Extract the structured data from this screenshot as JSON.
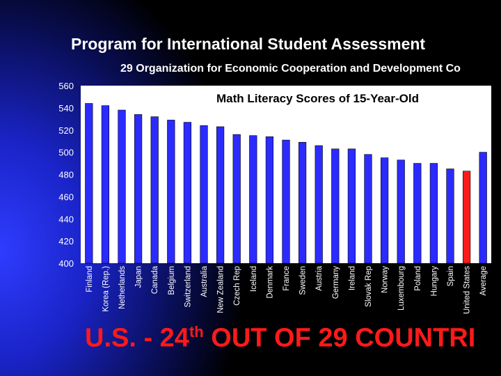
{
  "header": {
    "title": "Program for International Student Assessment",
    "subtitle": "29 Organization for Economic Cooperation and Development Co"
  },
  "footer": {
    "text_pre": "U.S. - 24",
    "text_sup": "th",
    "text_post": " OUT OF 29 COUNTRI"
  },
  "colors": {
    "bar": "#2b2bff",
    "highlight": "#ff1a1a",
    "plot_bg": "#ffffff",
    "text": "#ffffff"
  },
  "chart_data": {
    "type": "bar",
    "title": "Math Literacy Scores of 15-Year-Old",
    "xlabel": "",
    "ylabel": "",
    "ylim": [
      400,
      560
    ],
    "yticks": [
      400,
      420,
      440,
      460,
      480,
      500,
      520,
      540,
      560
    ],
    "grid": false,
    "highlight_category": "United States",
    "categories": [
      "Finland",
      "Korea (Rep.)",
      "Netherlands",
      "Japan",
      "Canada",
      "Belgium",
      "Switzerland",
      "Australia",
      "New Zealand",
      "Czech Rep",
      "Iceland",
      "Denmark",
      "France",
      "Sweden",
      "Austria",
      "Germany",
      "Ireland",
      "Slovak Rep",
      "Norway",
      "Luxembourg",
      "Poland",
      "Hungary",
      "Spain",
      "United States",
      "Average"
    ],
    "values": [
      544,
      542,
      538,
      534,
      532,
      529,
      527,
      524,
      523,
      516,
      515,
      514,
      511,
      509,
      506,
      503,
      503,
      498,
      495,
      493,
      490,
      490,
      485,
      483,
      500
    ]
  }
}
